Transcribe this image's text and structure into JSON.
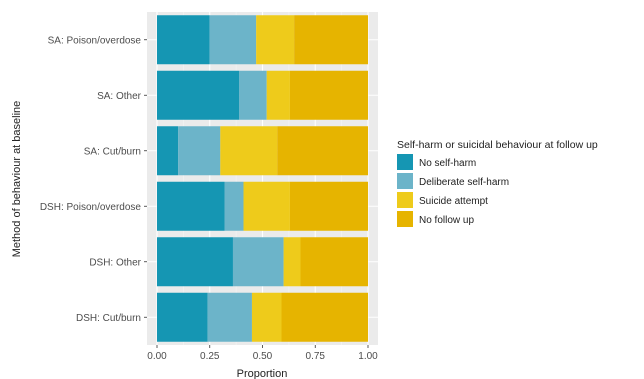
{
  "chart_data": {
    "type": "bar",
    "orientation": "horizontal",
    "stacked": true,
    "xlabel": "Proportion",
    "ylabel": "Method of behaviour at baseline",
    "xlim": [
      0,
      1
    ],
    "xticks": [
      "0.00",
      "0.25",
      "0.50",
      "0.75",
      "1.00"
    ],
    "categories": [
      "SA: Poison/overdose",
      "SA: Other",
      "SA: Cut/burn",
      "DSH: Poison/overdose",
      "DSH: Other",
      "DSH: Cut/burn"
    ],
    "legend_title": "Self-harm or suicidal behaviour at follow up",
    "legend_position": "right",
    "grid": true,
    "series": [
      {
        "name": "No self-harm",
        "color": "#1596b3",
        "values": [
          0.25,
          0.39,
          0.1,
          0.32,
          0.36,
          0.24
        ]
      },
      {
        "name": "Deliberate self-harm",
        "color": "#6cb4c9",
        "values": [
          0.22,
          0.13,
          0.2,
          0.09,
          0.24,
          0.21
        ]
      },
      {
        "name": "Suicide attempt",
        "color": "#eecb1b",
        "values": [
          0.18,
          0.11,
          0.27,
          0.22,
          0.08,
          0.14
        ]
      },
      {
        "name": "No follow up",
        "color": "#e6b400",
        "values": [
          0.35,
          0.37,
          0.43,
          0.37,
          0.32,
          0.41
        ]
      }
    ]
  }
}
